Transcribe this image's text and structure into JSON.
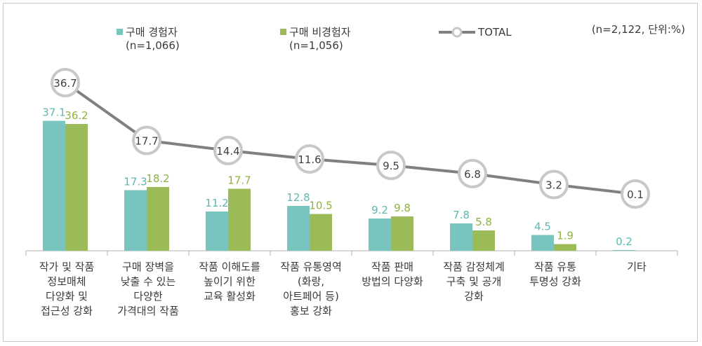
{
  "note": "(n=2,122, 단위:%)",
  "legend": [
    {
      "label": "구매 경험자",
      "sub": "(n=1,066)",
      "color": "#7ac4bf"
    },
    {
      "label": "구매 비경험자",
      "sub": "(n=1,056)",
      "color": "#9bbb59"
    },
    {
      "label": "TOTAL",
      "color": "#808080"
    }
  ],
  "chart_data": {
    "type": "bar",
    "categories": [
      [
        "작가 및 작품",
        "정보매체",
        "다양화 및",
        "접근성 강화"
      ],
      [
        "구매 장벽을",
        "낮출 수 있는",
        "다양한",
        "가격대의 작품"
      ],
      [
        "작품 이해도를",
        "높이기 위한",
        "교육 활성화"
      ],
      [
        "작품 유통영역",
        "(화랑,",
        "아트페어 등)",
        "홍보 강화"
      ],
      [
        "작품 판매",
        "방법의 다양화"
      ],
      [
        "작품 감정체계",
        "구축 및 공개",
        "강화"
      ],
      [
        "작품 유통",
        "투명성 강화"
      ],
      [
        "기타"
      ]
    ],
    "series": [
      {
        "name": "구매 경험자",
        "type": "bar",
        "color": "#7ac4bf",
        "values": [
          37.1,
          17.3,
          11.2,
          12.8,
          9.2,
          7.8,
          4.5,
          0.2
        ],
        "labels": [
          "37.1",
          "17.3",
          "11.2",
          "12.8",
          "9.2",
          "7.8",
          "4.5",
          "0.2"
        ]
      },
      {
        "name": "구매 비경험자",
        "type": "bar",
        "color": "#9bbb59",
        "values": [
          36.2,
          18.2,
          17.7,
          10.5,
          9.8,
          5.8,
          1.9,
          null
        ],
        "labels": [
          "36.2",
          "18.2",
          "17.7",
          "10.5",
          "9.8",
          "5.8",
          "1.9",
          ""
        ]
      },
      {
        "name": "TOTAL",
        "type": "line",
        "color": "#808080",
        "values": [
          36.7,
          17.7,
          14.4,
          11.6,
          9.5,
          6.8,
          3.2,
          0.1
        ],
        "labels": [
          "36.7",
          "17.7",
          "14.4",
          "11.6",
          "9.5",
          "6.8",
          "3.2",
          "0.1"
        ]
      }
    ],
    "ylim": [
      0,
      40
    ],
    "grid": false,
    "legend_position": "top"
  }
}
